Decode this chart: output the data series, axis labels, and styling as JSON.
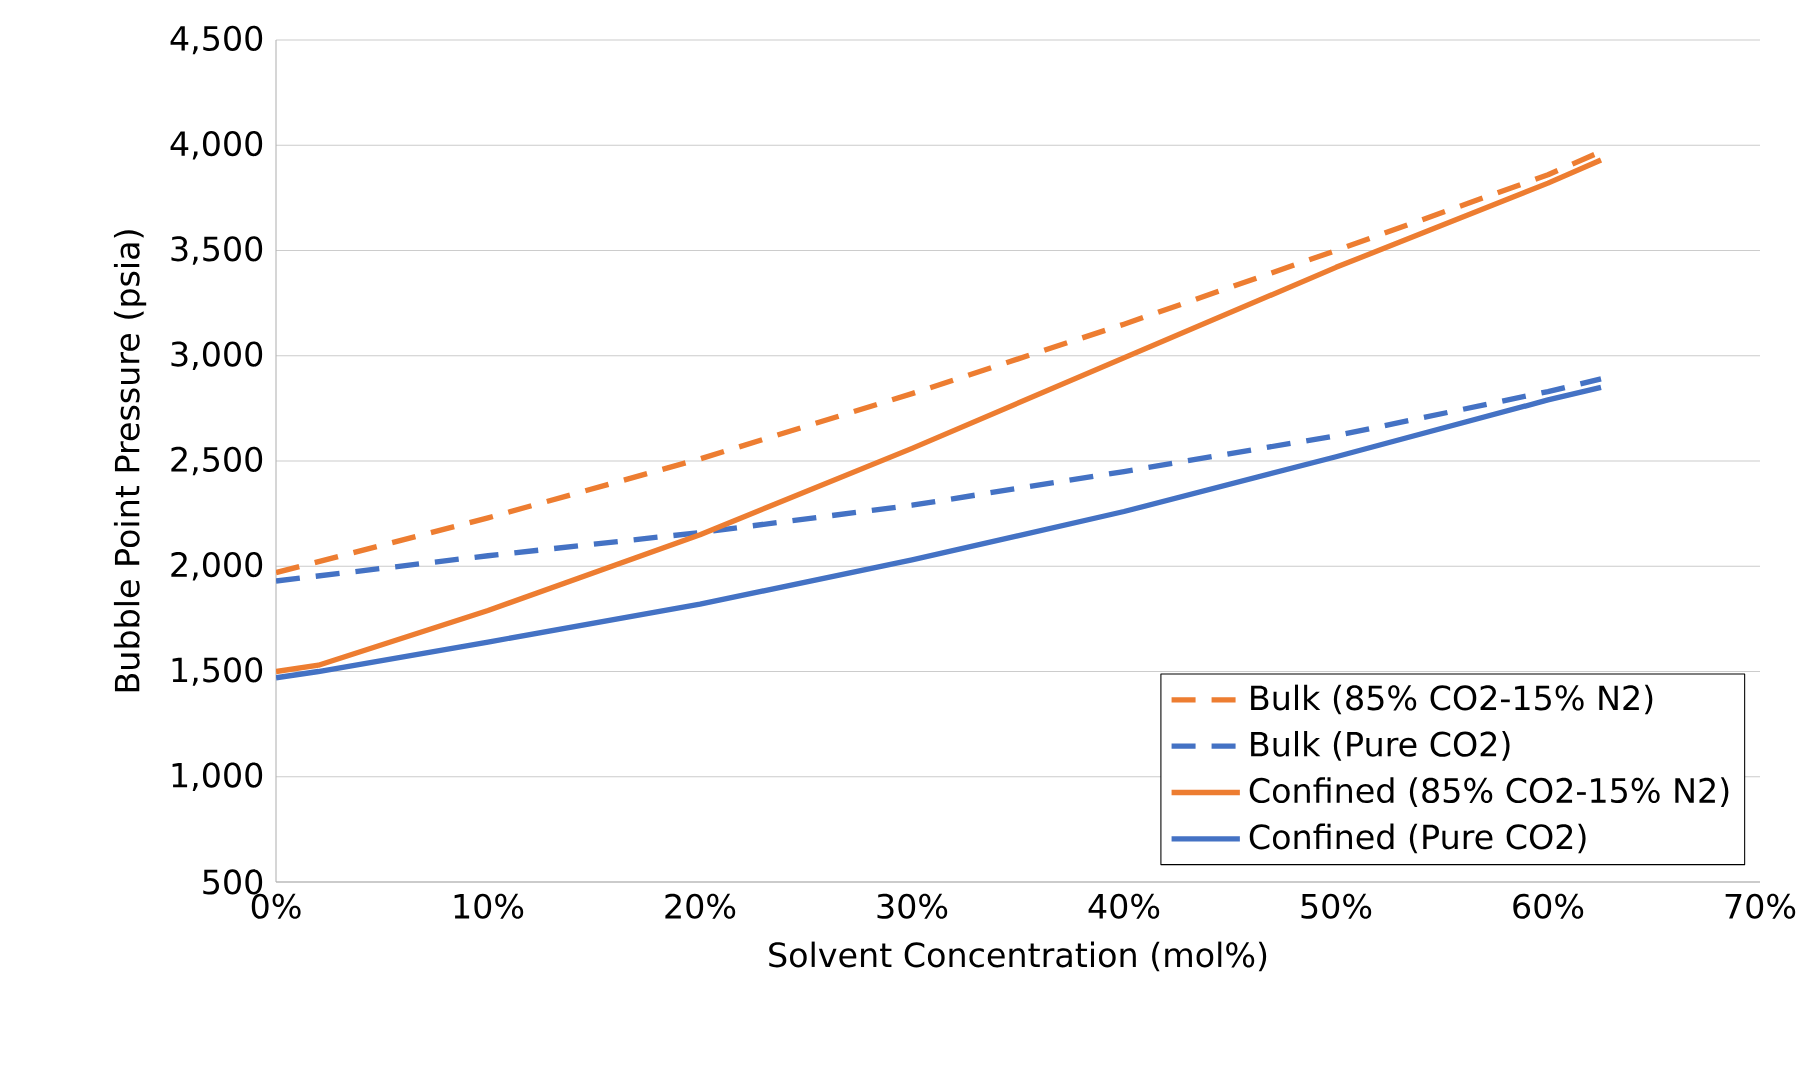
{
  "chart_data": {
    "type": "line",
    "xlabel": "Solvent Concentration (mol%)",
    "ylabel": "Bubble Point Pressure (psia)",
    "xlim": [
      0,
      70
    ],
    "ylim": [
      500,
      4500
    ],
    "xticks": [
      {
        "value": 0,
        "label": "0%"
      },
      {
        "value": 10,
        "label": "10%"
      },
      {
        "value": 20,
        "label": "20%"
      },
      {
        "value": 30,
        "label": "30%"
      },
      {
        "value": 40,
        "label": "40%"
      },
      {
        "value": 50,
        "label": "50%"
      },
      {
        "value": 60,
        "label": "60%"
      },
      {
        "value": 70,
        "label": "70%"
      }
    ],
    "yticks": [
      {
        "value": 500,
        "label": "500"
      },
      {
        "value": 1000,
        "label": "1,000"
      },
      {
        "value": 1500,
        "label": "1,500"
      },
      {
        "value": 2000,
        "label": "2,000"
      },
      {
        "value": 2500,
        "label": "2,500"
      },
      {
        "value": 3000,
        "label": "3,000"
      },
      {
        "value": 3500,
        "label": "3,500"
      },
      {
        "value": 4000,
        "label": "4,000"
      },
      {
        "value": 4500,
        "label": "4,500"
      }
    ],
    "grid": "y",
    "legend": "bottom right",
    "marker": "none",
    "series": [
      {
        "name": "Bulk (85% CO2-15% N2)",
        "color": "#ed7d31",
        "line_style": "dashed",
        "x": [
          0,
          10,
          20,
          30,
          40,
          50,
          60,
          62.5
        ],
        "values": [
          1970,
          2230,
          2510,
          2820,
          3150,
          3500,
          3860,
          3970
        ]
      },
      {
        "name": "Bulk (Pure CO2)",
        "color": "#4472c4",
        "line_style": "dashed",
        "x": [
          0,
          10,
          20,
          30,
          40,
          50,
          60,
          62.5
        ],
        "values": [
          1930,
          2050,
          2160,
          2290,
          2450,
          2620,
          2830,
          2890
        ]
      },
      {
        "name": "Confined (85% CO2-15% N2)",
        "color": "#ed7d31",
        "line_style": "solid",
        "x": [
          0,
          2,
          10,
          20,
          30,
          40,
          50,
          60,
          62.5
        ],
        "values": [
          1500,
          1530,
          1790,
          2150,
          2560,
          2990,
          3420,
          3820,
          3930
        ]
      },
      {
        "name": "Confined (Pure CO2)",
        "color": "#4472c4",
        "line_style": "solid",
        "x": [
          0,
          2,
          10,
          20,
          30,
          40,
          50,
          60,
          62.5
        ],
        "values": [
          1470,
          1500,
          1640,
          1820,
          2030,
          2260,
          2520,
          2790,
          2850
        ]
      }
    ]
  }
}
